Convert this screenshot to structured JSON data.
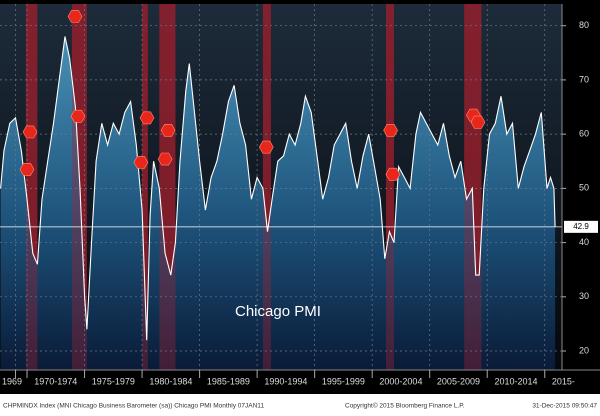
{
  "chart_data": {
    "type": "area",
    "annotation": "Chicago PMI",
    "footer_left": "CHPMINDX Index (MNI Chicago Business Barometer (sa)) Chicago PMI  Monthly 07JAN11",
    "footer_copyright": "Copyright© 2015 Bloomberg Finance L.P.",
    "footer_date": "31-Dec-2015 09:50:47",
    "x": [
      1967.7,
      1968.0,
      1968.5,
      1969.0,
      1969.5,
      1970.0,
      1970.5,
      1970.9,
      1971.3,
      1971.8,
      1972.3,
      1972.8,
      1973.3,
      1973.7,
      1974.2,
      1974.6,
      1975.0,
      1975.2,
      1975.6,
      1976.0,
      1976.5,
      1977.0,
      1977.5,
      1978.0,
      1978.5,
      1979.0,
      1979.5,
      1980.0,
      1980.4,
      1980.7,
      1981.0,
      1981.5,
      1982.0,
      1982.5,
      1982.9,
      1983.3,
      1983.8,
      1984.1,
      1984.5,
      1985.0,
      1985.5,
      1986.0,
      1986.5,
      1987.0,
      1987.5,
      1988.0,
      1988.5,
      1989.0,
      1989.5,
      1990.0,
      1990.5,
      1990.9,
      1991.3,
      1991.8,
      1992.3,
      1992.8,
      1993.3,
      1993.8,
      1994.2,
      1994.7,
      1995.2,
      1995.7,
      1996.2,
      1996.7,
      1997.2,
      1997.7,
      1998.2,
      1998.7,
      1999.2,
      1999.7,
      2000.2,
      2000.7,
      2001.1,
      2001.5,
      2001.9,
      2002.3,
      2002.8,
      2003.3,
      2003.8,
      2004.2,
      2004.7,
      2005.2,
      2005.7,
      2006.2,
      2006.7,
      2007.2,
      2007.7,
      2008.2,
      2008.7,
      2009.0,
      2009.3,
      2009.7,
      2010.2,
      2010.7,
      2011.2,
      2011.7,
      2012.2,
      2012.7,
      2013.2,
      2013.7,
      2014.2,
      2014.7,
      2015.2,
      2015.5,
      2015.8,
      2015.9
    ],
    "series": [
      {
        "name": "Chicago PMI",
        "color": "#ffffff",
        "values": [
          50,
          57,
          62,
          63,
          57,
          48,
          38,
          36,
          48,
          55,
          62,
          70,
          78,
          74,
          65,
          50,
          30,
          24,
          40,
          55,
          62,
          58,
          62,
          60,
          64,
          66,
          58,
          46,
          22,
          45,
          55,
          50,
          38,
          34,
          40,
          55,
          68,
          73,
          65,
          55,
          46,
          52,
          55,
          60,
          66,
          69,
          62,
          58,
          48,
          52,
          50,
          42,
          48,
          55,
          56,
          60,
          58,
          62,
          67,
          64,
          56,
          48,
          52,
          58,
          60,
          62,
          55,
          50,
          56,
          60,
          54,
          48,
          37,
          42,
          40,
          54,
          52,
          50,
          60,
          64,
          62,
          60,
          58,
          62,
          56,
          52,
          55,
          48,
          50,
          34,
          34,
          50,
          60,
          62,
          67,
          60,
          62,
          50,
          54,
          57,
          60,
          64,
          50,
          52,
          50,
          42.9
        ]
      }
    ],
    "recessions": [
      [
        1969.9,
        1970.9
      ],
      [
        1973.9,
        1975.2
      ],
      [
        1980.0,
        1980.5
      ],
      [
        1981.5,
        1982.9
      ],
      [
        1990.5,
        1991.2
      ],
      [
        2001.2,
        2001.9
      ],
      [
        2008.0,
        2009.5
      ]
    ],
    "markers": {
      "x": [
        1970.26,
        1970.0,
        1974.17,
        1974.43,
        1979.9,
        1980.43,
        1982.0,
        1982.26,
        1990.8,
        2001.6,
        2001.8,
        2008.8,
        2009.2
      ],
      "y": [
        60.4,
        53.5,
        81.7,
        63.3,
        54.8,
        63,
        55.4,
        60.7,
        57.6,
        60.7,
        52.6,
        63.5,
        62.2
      ]
    },
    "xlim": [
      1967.65,
      2016.5
    ],
    "xticks": [
      1969,
      {
        "value": 1970,
        "label": "1970-1974"
      },
      {
        "value": 1975,
        "label": "1975-1979"
      },
      {
        "value": 1980,
        "label": "1980-1984"
      },
      {
        "value": 1985,
        "label": "1985-1989"
      },
      {
        "value": 1990,
        "label": "1990-1994"
      },
      {
        "value": 1995,
        "label": "1995-1999"
      },
      {
        "value": 2000,
        "label": "2000-2004"
      },
      {
        "value": 2005,
        "label": "2005-2009"
      },
      {
        "value": 2010,
        "label": "2010-2014"
      },
      {
        "value": 2015,
        "label": "2015-"
      }
    ],
    "ylim": [
      16.5,
      84
    ],
    "yticks": [
      20,
      30,
      40,
      50,
      60,
      70,
      80
    ],
    "grid": true
  }
}
